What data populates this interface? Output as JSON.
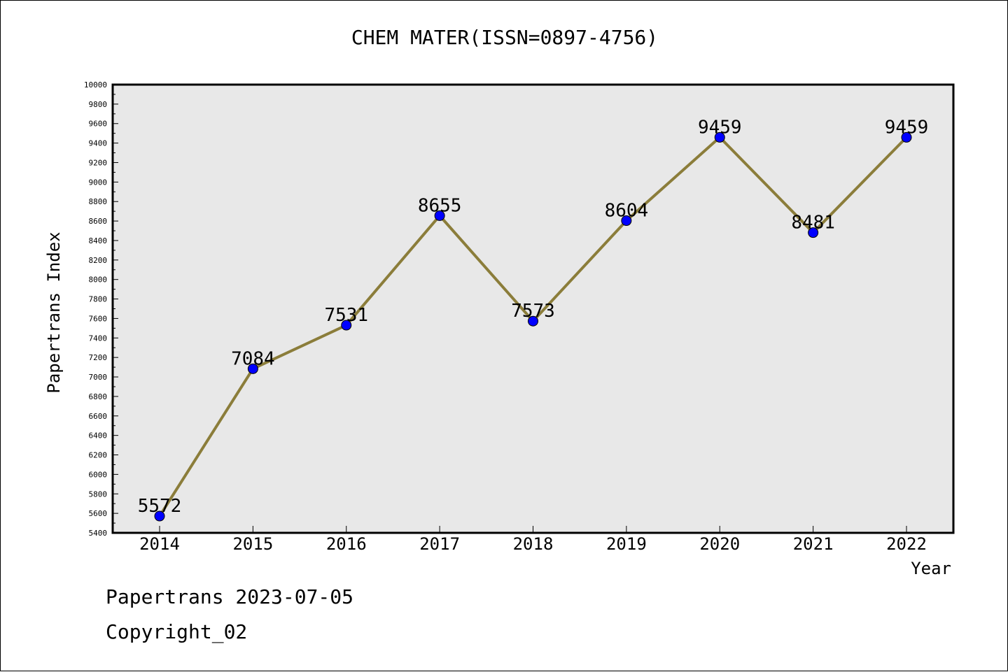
{
  "chart_data": {
    "type": "line",
    "title": "CHEM MATER(ISSN=0897-4756)",
    "xlabel": "Year",
    "ylabel": "Papertrans Index",
    "categories": [
      "2014",
      "2015",
      "2016",
      "2017",
      "2018",
      "2019",
      "2020",
      "2021",
      "2022"
    ],
    "series": [
      {
        "values": [
          5572,
          7084,
          7531,
          8655,
          7573,
          8604,
          9459,
          8481,
          9459
        ]
      }
    ],
    "data_labels": [
      "5572",
      "7084",
      "7531",
      "8655",
      "7573",
      "8604",
      "9459",
      "8481",
      "9459"
    ],
    "ylim": [
      5400,
      10000
    ],
    "yticks": [
      "5400",
      "5600",
      "5800",
      "6000",
      "6200",
      "6400",
      "6600",
      "6800",
      "7000",
      "7200",
      "7400",
      "7600",
      "7800",
      "8000",
      "8200",
      "8400",
      "8600",
      "8800",
      "9000",
      "9200",
      "9400",
      "9600",
      "9800",
      "10000"
    ],
    "grid": false,
    "legend": "none",
    "colors": {
      "line": "#8b7d3a",
      "marker": "#0000ff",
      "plot_background": "#e8e8e8"
    }
  },
  "footer": {
    "line1": "Papertrans 2023-07-05",
    "line2": "Copyright_02"
  }
}
